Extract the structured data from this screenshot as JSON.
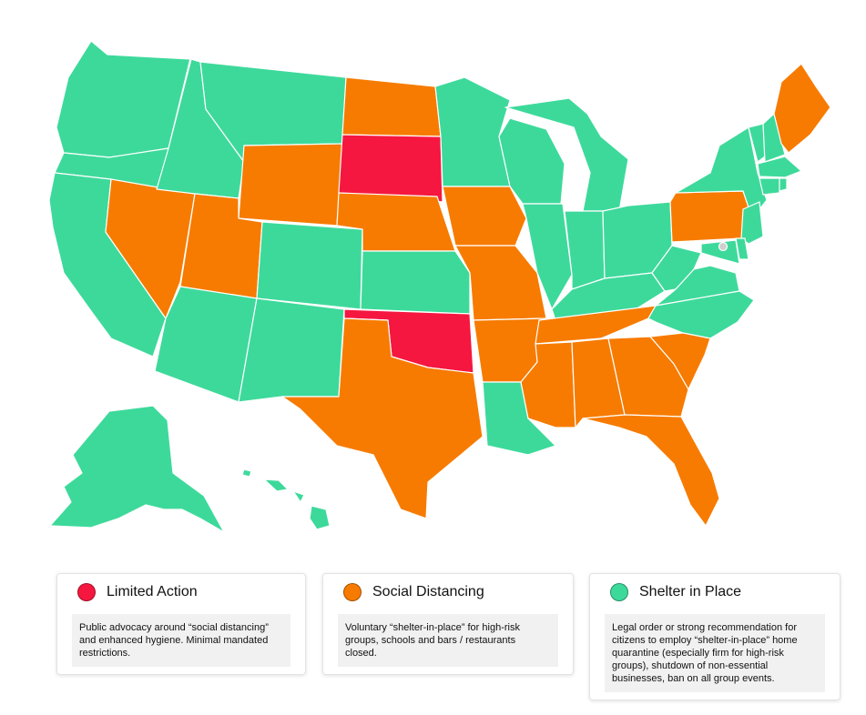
{
  "colors": {
    "limited_action": "#f5173f",
    "social_distancing": "#f77b00",
    "shelter_in_place": "#3dd99b"
  },
  "map": {
    "categories": {
      "limited_action": [
        "South Dakota",
        "Oklahoma"
      ],
      "social_distancing": [
        "Nevada",
        "Utah",
        "Wyoming",
        "North Dakota",
        "Nebraska",
        "Iowa",
        "Missouri",
        "Arkansas",
        "Texas",
        "Tennessee",
        "Mississippi",
        "Alabama",
        "Georgia",
        "South Carolina",
        "Florida",
        "Pennsylvania",
        "Maine"
      ],
      "shelter_in_place": [
        "Washington",
        "Oregon",
        "California",
        "Idaho",
        "Montana",
        "Colorado",
        "Arizona",
        "New Mexico",
        "Kansas",
        "Minnesota",
        "Wisconsin",
        "Illinois",
        "Michigan",
        "Indiana",
        "Ohio",
        "Kentucky",
        "West Virginia",
        "Virginia",
        "North Carolina",
        "Louisiana",
        "New York",
        "New Jersey",
        "Delaware",
        "Maryland",
        "Vermont",
        "New Hampshire",
        "Massachusetts",
        "Connecticut",
        "Rhode Island",
        "Alaska",
        "Hawaii"
      ]
    }
  },
  "legend": [
    {
      "key": "limited_action",
      "title": "Limited Action",
      "description": "Public advocacy around “social distancing” and enhanced hygiene. Minimal mandated restrictions."
    },
    {
      "key": "social_distancing",
      "title": "Social Distancing",
      "description": "Voluntary “shelter-in-place” for high-risk groups, schools and bars / restaurants closed."
    },
    {
      "key": "shelter_in_place",
      "title": "Shelter in Place",
      "description": "Legal order or strong recommendation for citizens to employ “shelter-in-place” home quarantine (especially firm for high-risk groups), shutdown of non-essential businesses, ban on all group events."
    }
  ]
}
